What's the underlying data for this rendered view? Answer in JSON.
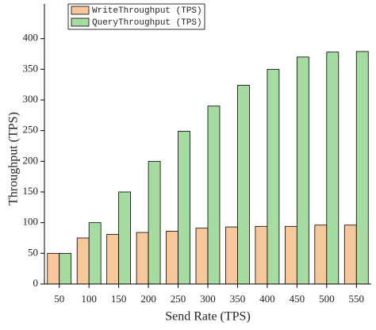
{
  "chart_data": {
    "type": "bar",
    "x_label": "Send Rate (TPS)",
    "y_label": "Throughput (TPS)",
    "categories": [
      "50",
      "100",
      "150",
      "200",
      "250",
      "300",
      "350",
      "400",
      "450",
      "500",
      "550"
    ],
    "series": [
      {
        "name": "WriteThroughput (TPS)",
        "color": "#f8c89c",
        "values": [
          50,
          75,
          81,
          84,
          86,
          91,
          93,
          94,
          94,
          96,
          96
        ]
      },
      {
        "name": "QueryThroughput (TPS)",
        "color": "#a6dba2",
        "values": [
          50,
          100,
          150,
          200,
          249,
          290,
          324,
          350,
          370,
          378,
          379
        ]
      }
    ],
    "ylim": [
      0,
      450
    ],
    "yticks": [
      0,
      50,
      100,
      150,
      200,
      250,
      300,
      350,
      400
    ],
    "legend": "top-left"
  }
}
